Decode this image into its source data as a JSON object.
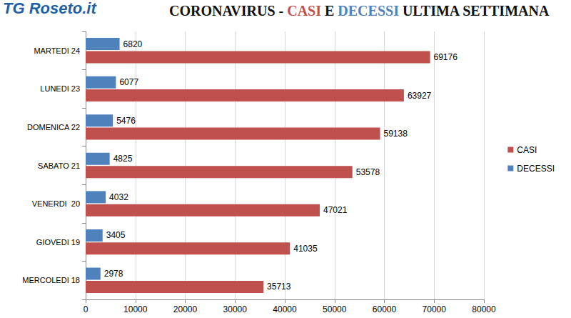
{
  "chart_data": {
    "type": "bar",
    "title": "CORONAVIRUS - CASI E DECESSI ULTIMA SETTIMANA",
    "annotations": [
      "TG Roseto.it"
    ],
    "orientation": "horizontal",
    "categories": [
      "MERCOLEDI 18",
      "GIOVEDI 19",
      "VENERDI  20",
      "SABATO 21",
      "DOMENICA 22",
      "LUNEDI 23",
      "MARTEDI 24"
    ],
    "series": [
      {
        "name": "CASI",
        "color": "#c0504d",
        "values": [
          35713,
          41035,
          47021,
          53578,
          59138,
          63927,
          69176
        ]
      },
      {
        "name": "DECESSI",
        "color": "#4f81bd",
        "values": [
          2978,
          3405,
          4032,
          4825,
          5476,
          6077,
          6820
        ]
      }
    ],
    "xlim": [
      0,
      80000
    ],
    "xticks": [
      0,
      10000,
      20000,
      30000,
      40000,
      50000,
      60000,
      70000,
      80000
    ],
    "grid": true,
    "legend": "right",
    "data_labels": true
  }
}
